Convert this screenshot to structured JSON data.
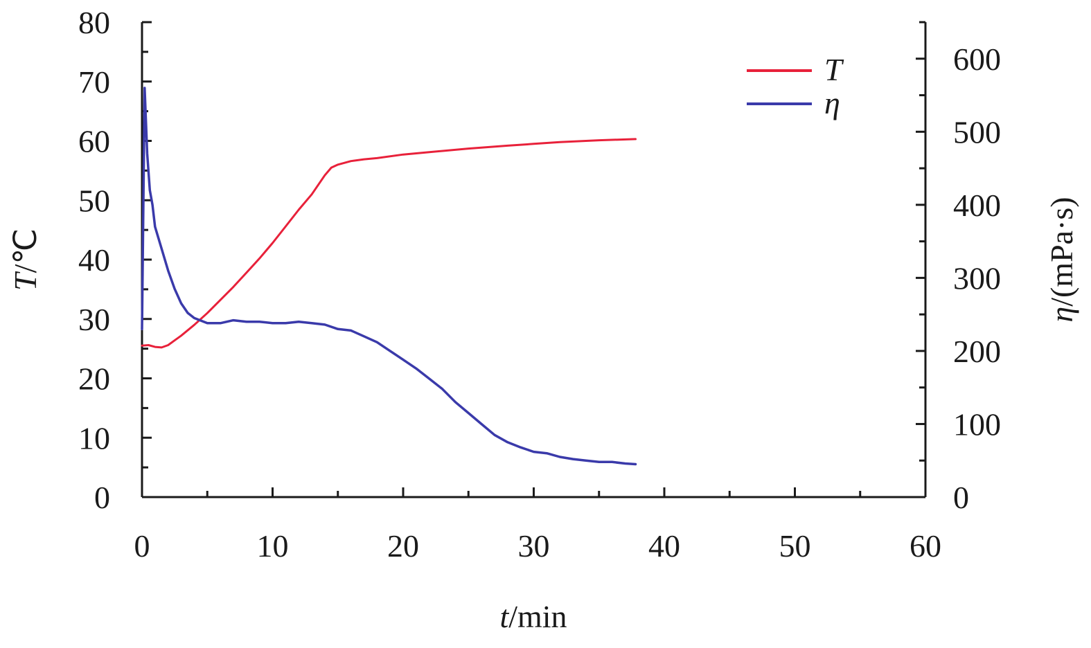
{
  "chart_data": {
    "type": "line",
    "title": "",
    "xlabel": {
      "symbol": "t",
      "unit": "/min"
    },
    "ylabel_left": {
      "symbol": "T",
      "unit": "/℃"
    },
    "ylabel_right": {
      "symbol": "η",
      "unit": "/(mPa·s)"
    },
    "xlim": [
      0,
      60
    ],
    "ylim_left": [
      0,
      80
    ],
    "ylim_right": [
      0,
      650
    ],
    "x_ticks": [
      0,
      10,
      20,
      30,
      40,
      50,
      60
    ],
    "y_left_ticks": [
      0,
      10,
      20,
      30,
      40,
      50,
      60,
      70,
      80
    ],
    "y_right_ticks": [
      0,
      100,
      200,
      300,
      400,
      500,
      600
    ],
    "grid": false,
    "legend_position": "top-right",
    "series": [
      {
        "name": "T",
        "axis": "left",
        "color": "#e8213a",
        "x": [
          0,
          0.5,
          1,
          1.5,
          2,
          3,
          4,
          5,
          6,
          7,
          8,
          9,
          10,
          11,
          12,
          13,
          14,
          14.5,
          15,
          16,
          17,
          18,
          20,
          22,
          25,
          28,
          30,
          32,
          35,
          37.8
        ],
        "y": [
          25.5,
          25.6,
          25.3,
          25.2,
          25.6,
          27.2,
          29.0,
          31.0,
          33.2,
          35.4,
          37.8,
          40.2,
          42.8,
          45.6,
          48.4,
          51.0,
          54.2,
          55.5,
          56.0,
          56.6,
          56.9,
          57.1,
          57.7,
          58.1,
          58.7,
          59.2,
          59.5,
          59.8,
          60.1,
          60.3
        ]
      },
      {
        "name": "η",
        "axis": "right",
        "color": "#3a3aaa",
        "x": [
          0,
          0.2,
          0.4,
          0.6,
          0.8,
          1,
          1.5,
          2,
          2.5,
          3,
          3.5,
          4,
          5,
          6,
          7,
          8,
          9,
          10,
          11,
          12,
          13,
          14,
          15,
          16,
          17,
          18,
          19,
          20,
          21,
          22,
          23,
          24,
          25,
          26,
          27,
          28,
          29,
          30,
          31,
          32,
          33,
          34,
          35,
          36,
          37,
          37.8
        ],
        "y": [
          230,
          560,
          470,
          420,
          400,
          370,
          340,
          310,
          285,
          265,
          252,
          245,
          238,
          238,
          242,
          240,
          240,
          238,
          238,
          240,
          238,
          236,
          230,
          228,
          220,
          212,
          200,
          188,
          176,
          162,
          148,
          130,
          115,
          100,
          85,
          75,
          68,
          62,
          60,
          55,
          52,
          50,
          48,
          48,
          46,
          45
        ]
      }
    ]
  }
}
